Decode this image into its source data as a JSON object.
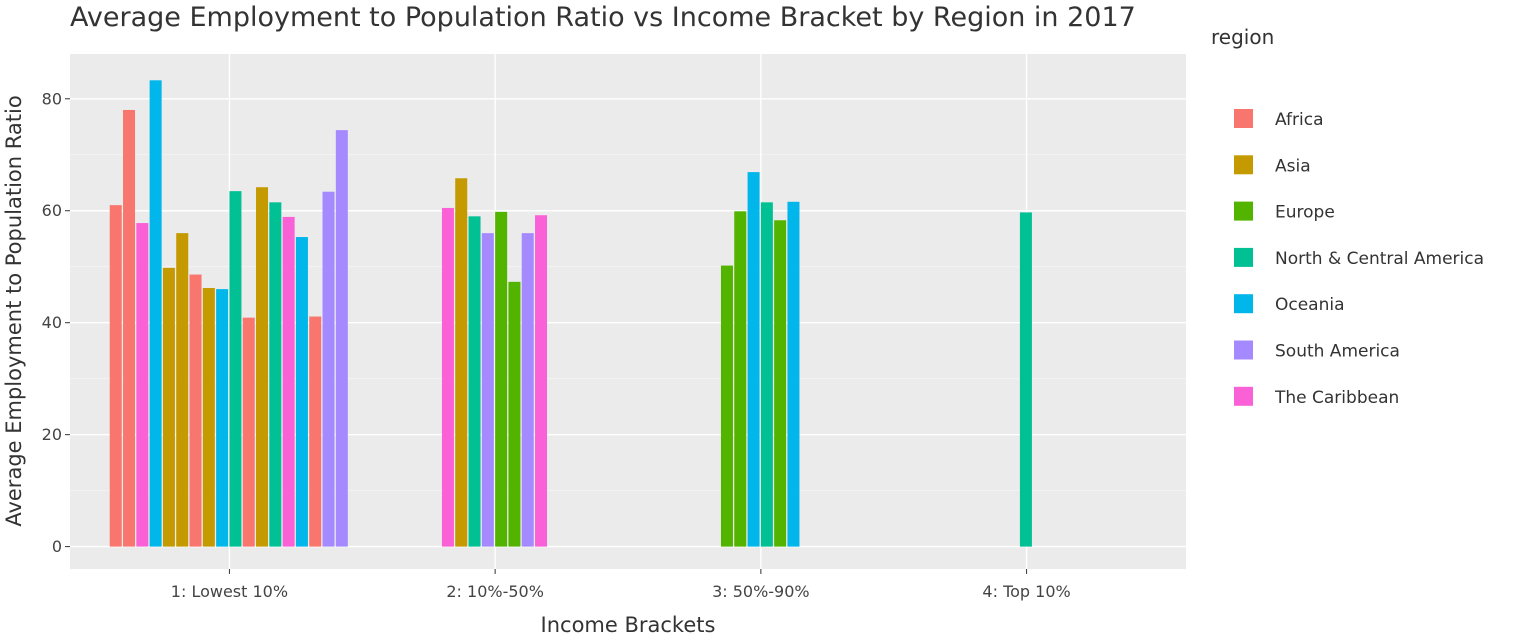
{
  "chart_data": {
    "type": "bar",
    "title": "Average Employment to Population Ratio vs Income Bracket by Region in 2017",
    "xlabel": "Income Brackets",
    "ylabel": "Average Employment to Population Ratio",
    "ylim": [
      -4,
      88
    ],
    "yticks": [
      0,
      20,
      40,
      60,
      80
    ],
    "grid": true,
    "legend_title": "region",
    "legend_position": "right",
    "categories": [
      "1: Lowest 10%",
      "2: 10%-50%",
      "3: 50%-90%",
      "4: Top 10%"
    ],
    "regions": [
      {
        "name": "Africa",
        "color": "#F8766D"
      },
      {
        "name": "Asia",
        "color": "#C49A00"
      },
      {
        "name": "Europe",
        "color": "#53B400"
      },
      {
        "name": "North & Central America",
        "color": "#00C094"
      },
      {
        "name": "Oceania",
        "color": "#00B6EB"
      },
      {
        "name": "South America",
        "color": "#A58AFF"
      },
      {
        "name": "The Caribbean",
        "color": "#FB61D7"
      }
    ],
    "groups": [
      {
        "category": "1: Lowest 10%",
        "bars": [
          {
            "region": "Africa",
            "value": 61
          },
          {
            "region": "Africa",
            "value": 78
          },
          {
            "region": "The Caribbean",
            "value": 57.8
          },
          {
            "region": "Oceania",
            "value": 83.3
          },
          {
            "region": "Asia",
            "value": 49.8
          },
          {
            "region": "Asia",
            "value": 56
          },
          {
            "region": "Africa",
            "value": 48.6
          },
          {
            "region": "Asia",
            "value": 46.2
          },
          {
            "region": "Oceania",
            "value": 46
          },
          {
            "region": "North & Central America",
            "value": 63.5
          },
          {
            "region": "Africa",
            "value": 40.9
          },
          {
            "region": "Asia",
            "value": 64.2
          },
          {
            "region": "North & Central America",
            "value": 61.5
          },
          {
            "region": "The Caribbean",
            "value": 58.9
          },
          {
            "region": "Oceania",
            "value": 55.3
          },
          {
            "region": "Africa",
            "value": 41.1
          },
          {
            "region": "South America",
            "value": 63.4
          },
          {
            "region": "South America",
            "value": 74.4
          }
        ]
      },
      {
        "category": "2: 10%-50%",
        "bars": [
          {
            "region": "The Caribbean",
            "value": 60.5
          },
          {
            "region": "Asia",
            "value": 65.8
          },
          {
            "region": "North & Central America",
            "value": 59
          },
          {
            "region": "South America",
            "value": 56
          },
          {
            "region": "Europe",
            "value": 59.8
          },
          {
            "region": "Europe",
            "value": 47.3
          },
          {
            "region": "South America",
            "value": 56
          },
          {
            "region": "The Caribbean",
            "value": 59.2
          }
        ]
      },
      {
        "category": "3: 50%-90%",
        "bars": [
          {
            "region": "Europe",
            "value": 50.2
          },
          {
            "region": "Europe",
            "value": 59.9
          },
          {
            "region": "Oceania",
            "value": 66.9
          },
          {
            "region": "North & Central America",
            "value": 61.5
          },
          {
            "region": "Europe",
            "value": 58.3
          },
          {
            "region": "Oceania",
            "value": 61.6
          }
        ]
      },
      {
        "category": "4: Top 10%",
        "bars": [
          {
            "region": "North & Central America",
            "value": 59.7
          }
        ]
      }
    ]
  }
}
